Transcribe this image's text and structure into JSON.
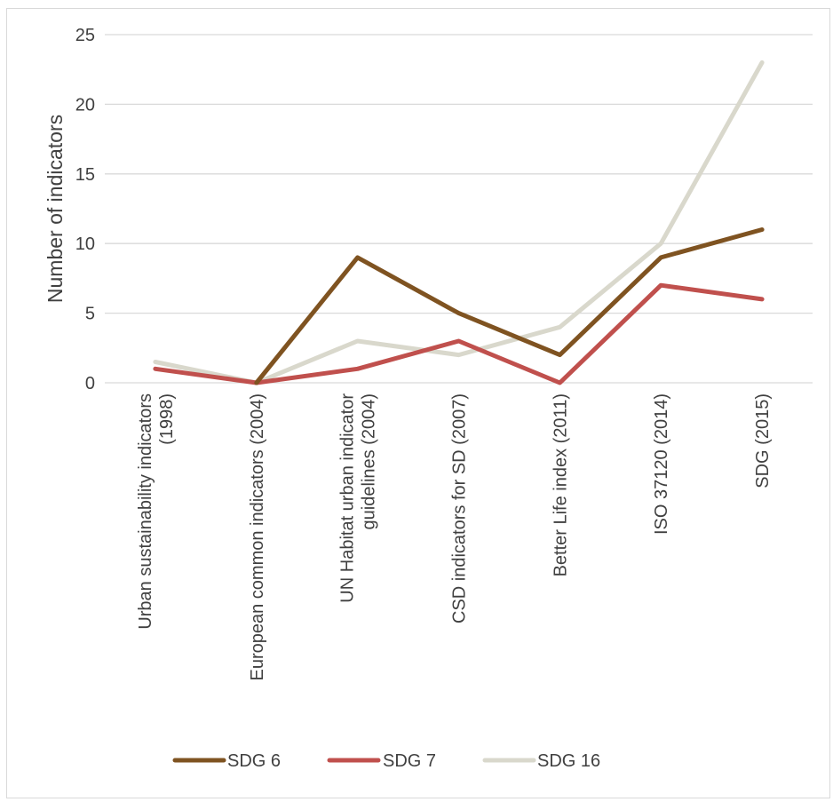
{
  "chart_data": {
    "type": "line",
    "title": "",
    "xlabel": "",
    "ylabel": "Number of indicators",
    "ylim": [
      0,
      25
    ],
    "yticks": [
      0,
      5,
      10,
      15,
      20,
      25
    ],
    "grid": true,
    "legend_position": "bottom",
    "categories": [
      [
        "Urban sustainability indicators",
        "(1998)"
      ],
      [
        "European common indicators (2004)"
      ],
      [
        "UN Habitat urban indicator",
        "guidelines (2004)"
      ],
      [
        "CSD indicators for SD (2007)"
      ],
      [
        "Better Life index (2011)"
      ],
      [
        "ISO 37120 (2014)"
      ],
      [
        "SDG (2015)"
      ]
    ],
    "series": [
      {
        "name": "SDG 6",
        "color": "#7f5321",
        "values": [
          null,
          0,
          9,
          5,
          2,
          9,
          11
        ]
      },
      {
        "name": "SDG 7",
        "color": "#c0504d",
        "values": [
          1,
          0,
          1,
          3,
          0,
          7,
          6
        ]
      },
      {
        "name": "SDG 16",
        "color": "#d9d8cc",
        "values": [
          1.5,
          0,
          3,
          2,
          4,
          10,
          23
        ]
      }
    ]
  }
}
